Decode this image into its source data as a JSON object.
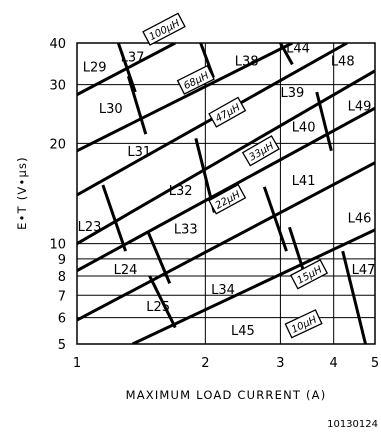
{
  "chart_data": {
    "type": "region-map",
    "title": "",
    "xlabel": "MAXIMUM LOAD CURRENT (A)",
    "ylabel": "E•T (V•µs)",
    "xscale": "log",
    "yscale": "log",
    "xlim": [
      1,
      5
    ],
    "ylim": [
      5,
      40
    ],
    "x_ticks": [
      "1",
      "2",
      "3",
      "4",
      "5"
    ],
    "y_ticks": [
      "5",
      "6",
      "7",
      "8",
      "9",
      "10",
      "20",
      "30",
      "40"
    ],
    "grid": true,
    "inductance_boundaries": [
      {
        "label": "100µH",
        "x": [
          1.0,
          1.7
        ],
        "y": [
          28.0,
          40.0
        ],
        "label_at": [
          1.6,
          44.0
        ]
      },
      {
        "label": "68µH",
        "x": [
          1.0,
          3.2
        ],
        "y": [
          19.0,
          40.0
        ],
        "label_at": [
          1.9,
          31.0
        ]
      },
      {
        "label": "47µH",
        "x": [
          1.0,
          4.3
        ],
        "y": [
          14.0,
          40.0
        ],
        "label_at": [
          2.25,
          24.8
        ]
      },
      {
        "label": "33µH",
        "x": [
          1.0,
          5.0
        ],
        "y": [
          10.0,
          33.0
        ],
        "label_at": [
          2.7,
          19.0
        ]
      },
      {
        "label": "22µH",
        "x": [
          1.0,
          5.0
        ],
        "y": [
          8.3,
          25.5
        ],
        "label_at": [
          2.25,
          13.6
        ]
      },
      {
        "label": "15µH",
        "x": [
          1.0,
          5.0
        ],
        "y": [
          5.9,
          17.5
        ],
        "label_at": [
          3.5,
          8.1
        ]
      },
      {
        "label": "10µH",
        "x": [
          1.35,
          5.0
        ],
        "y": [
          5.0,
          11.0
        ],
        "label_at": [
          3.4,
          5.75
        ]
      }
    ],
    "current_boundaries": [
      {
        "x": [
          1.25,
          1.37
        ],
        "y": [
          40.0,
          28.5
        ]
      },
      {
        "x": [
          1.95,
          2.09
        ],
        "y": [
          40.0,
          31.5
        ]
      },
      {
        "x": [
          3.0,
          3.2
        ],
        "y": [
          40.0,
          34.5
        ]
      },
      {
        "x": [
          1.32,
          1.45
        ],
        "y": [
          31.8,
          21.3
        ]
      },
      {
        "x": [
          1.9,
          2.1
        ],
        "y": [
          20.7,
          12.4
        ]
      },
      {
        "x": [
          3.65,
          3.95
        ],
        "y": [
          28.5,
          19.0
        ]
      },
      {
        "x": [
          1.15,
          1.3
        ],
        "y": [
          15.0,
          9.5
        ]
      },
      {
        "x": [
          2.75,
          3.1
        ],
        "y": [
          14.8,
          9.5
        ]
      },
      {
        "x": [
          1.47,
          1.65
        ],
        "y": [
          10.8,
          7.6
        ]
      },
      {
        "x": [
          3.15,
          3.45
        ],
        "y": [
          11.2,
          7.8
        ]
      },
      {
        "x": [
          1.48,
          1.7
        ],
        "y": [
          8.0,
          5.6
        ]
      },
      {
        "x": [
          4.2,
          4.75
        ],
        "y": [
          9.5,
          5.0
        ]
      }
    ],
    "regions": [
      {
        "label": "L29",
        "x": 1.1,
        "y": 34.0
      },
      {
        "label": "L37",
        "x": 1.35,
        "y": 36.5
      },
      {
        "label": "L38",
        "x": 2.5,
        "y": 35.5
      },
      {
        "label": "L44",
        "x": 3.3,
        "y": 38.8
      },
      {
        "label": "L48",
        "x": 4.2,
        "y": 35.5
      },
      {
        "label": "L30",
        "x": 1.2,
        "y": 25.5
      },
      {
        "label": "L39",
        "x": 3.2,
        "y": 28.5
      },
      {
        "label": "L49",
        "x": 4.6,
        "y": 26.0
      },
      {
        "label": "L40",
        "x": 3.4,
        "y": 22.5
      },
      {
        "label": "L31",
        "x": 1.4,
        "y": 19.0
      },
      {
        "label": "L32",
        "x": 1.75,
        "y": 14.5
      },
      {
        "label": "L41",
        "x": 3.4,
        "y": 15.5
      },
      {
        "label": "L46",
        "x": 4.6,
        "y": 12.0
      },
      {
        "label": "L23",
        "x": 1.07,
        "y": 11.3
      },
      {
        "label": "L33",
        "x": 1.8,
        "y": 11.1
      },
      {
        "label": "L24",
        "x": 1.3,
        "y": 8.4
      },
      {
        "label": "L34",
        "x": 2.2,
        "y": 7.3
      },
      {
        "label": "L47",
        "x": 4.7,
        "y": 8.4
      },
      {
        "label": "L25",
        "x": 1.55,
        "y": 6.5
      },
      {
        "label": "L45",
        "x": 2.45,
        "y": 5.5
      }
    ]
  },
  "figure_id": "10130124"
}
